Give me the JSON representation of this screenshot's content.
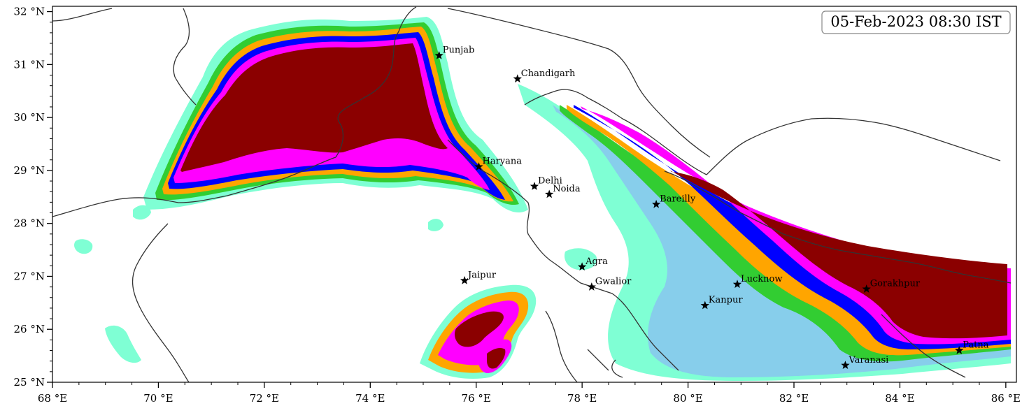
{
  "timestamp": "05-Feb-2023 08:30 IST",
  "x_ticks": [
    {
      "lon": 68,
      "label": "68 °E"
    },
    {
      "lon": 70,
      "label": "70 °E"
    },
    {
      "lon": 72,
      "label": "72 °E"
    },
    {
      "lon": 74,
      "label": "74 °E"
    },
    {
      "lon": 76,
      "label": "76 °E"
    },
    {
      "lon": 78,
      "label": "78 °E"
    },
    {
      "lon": 80,
      "label": "80 °E"
    },
    {
      "lon": 82,
      "label": "82 °E"
    },
    {
      "lon": 84,
      "label": "84 °E"
    },
    {
      "lon": 86,
      "label": "86 °E"
    }
  ],
  "y_ticks": [
    {
      "lat": 25,
      "label": "25 °N"
    },
    {
      "lat": 26,
      "label": "26 °N"
    },
    {
      "lat": 27,
      "label": "27 °N"
    },
    {
      "lat": 28,
      "label": "28 °N"
    },
    {
      "lat": 29,
      "label": "29 °N"
    },
    {
      "lat": 30,
      "label": "30 °N"
    },
    {
      "lat": 31,
      "label": "31 °N"
    },
    {
      "lat": 32,
      "label": "32 °N"
    }
  ],
  "cities": [
    {
      "name": "Punjab",
      "lon": 75.3,
      "lat": 31.17
    },
    {
      "name": "Chandigarh",
      "lon": 76.78,
      "lat": 30.73
    },
    {
      "name": "Haryana",
      "lon": 76.05,
      "lat": 29.07
    },
    {
      "name": "Delhi",
      "lon": 77.1,
      "lat": 28.7
    },
    {
      "name": "Noida",
      "lon": 77.38,
      "lat": 28.55
    },
    {
      "name": "Bareilly",
      "lon": 79.4,
      "lat": 28.36
    },
    {
      "name": "Agra",
      "lon": 78.0,
      "lat": 27.18
    },
    {
      "name": "Jaipur",
      "lon": 75.78,
      "lat": 26.92
    },
    {
      "name": "Gwalior",
      "lon": 78.18,
      "lat": 26.8
    },
    {
      "name": "Lucknow",
      "lon": 80.93,
      "lat": 26.85
    },
    {
      "name": "Kanpur",
      "lon": 80.32,
      "lat": 26.45
    },
    {
      "name": "Gorakhpur",
      "lon": 83.37,
      "lat": 26.76
    },
    {
      "name": "Patna",
      "lon": 85.12,
      "lat": 25.6
    },
    {
      "name": "Varanasi",
      "lon": 82.97,
      "lat": 25.32
    }
  ],
  "colors": {
    "lightest": "#7fffd4",
    "light_blue": "#87ceeb",
    "green": "#32cd32",
    "orange": "#ffa500",
    "gold": "#ffd700",
    "blue": "#0000ff",
    "magenta": "#ff00ff",
    "dark_red": "#8b0000",
    "border": "#333333"
  }
}
